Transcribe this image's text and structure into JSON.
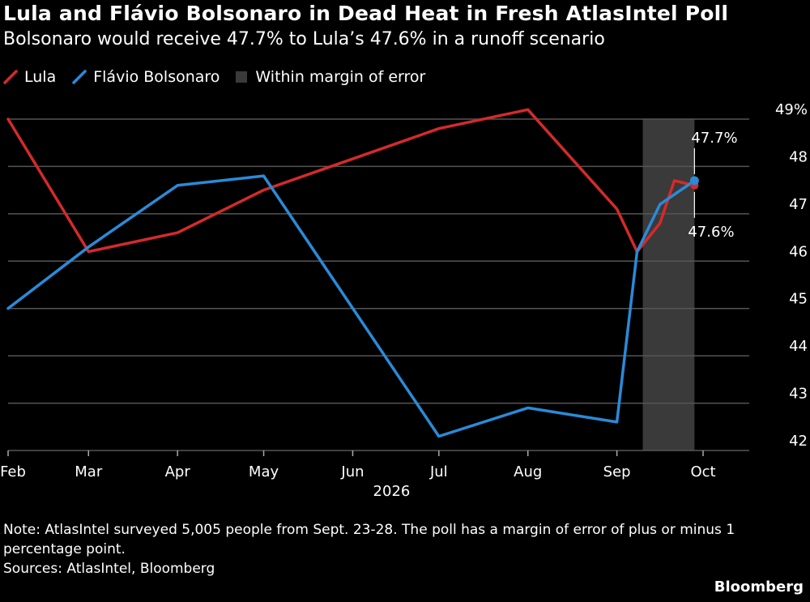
{
  "title": "Lula and Flávio Bolsonaro in Dead Heat in Fresh AtlasIntel Poll",
  "subtitle": "Bolsonaro would receive 47.7% to Lula’s 47.6% in a runoff scenario",
  "legend": {
    "lula": "Lula",
    "bolsonaro": "Flávio Bolsonaro",
    "margin": "Within margin of error"
  },
  "note": "Note: AtlasIntel surveyed 5,005 people from Sept. 23-28. The poll has a margin of error of plus or minus 1 percentage point.",
  "sources": "Sources: AtlasIntel, Bloomberg",
  "brand": "Bloomberg",
  "colors": {
    "lula": "#d42a2a",
    "bolsonaro": "#2a8ad8",
    "margin_band": "#3a3a3a",
    "grid": "#555555",
    "background": "#000000"
  },
  "chart_data": {
    "type": "line",
    "title": "Lula and Flávio Bolsonaro in Dead Heat in Fresh AtlasIntel Poll",
    "subtitle": "Bolsonaro would receive 47.7% to Lula’s 47.6% in a runoff scenario",
    "xlabel": "2026",
    "ylabel": "",
    "ylim": [
      42,
      49
    ],
    "xlim": [
      "2026-02-01",
      "2026-10-01"
    ],
    "y_ticks": [
      "42",
      "43",
      "44",
      "45",
      "46",
      "47",
      "48",
      "49%"
    ],
    "x_ticks": [
      "Feb",
      "Mar",
      "Apr",
      "May",
      "Jun",
      "Jul",
      "Aug",
      "Sep",
      "Oct"
    ],
    "year_label": "2026",
    "grid": "horizontal",
    "legend_position": "top-left",
    "margin_band": {
      "label": "Within margin of error",
      "x_start": "2026-09-10",
      "x_end": "2026-09-28"
    },
    "series": [
      {
        "name": "Lula",
        "color": "#d42a2a",
        "points": [
          [
            "2026-02-01",
            49.0
          ],
          [
            "2026-03-01",
            46.2
          ],
          [
            "2026-04-01",
            46.6
          ],
          [
            "2026-05-01",
            47.5
          ],
          [
            "2026-07-01",
            48.8
          ],
          [
            "2026-08-01",
            49.2
          ],
          [
            "2026-09-01",
            47.1
          ],
          [
            "2026-09-08",
            46.2
          ],
          [
            "2026-09-16",
            46.8
          ],
          [
            "2026-09-21",
            47.7
          ],
          [
            "2026-09-28",
            47.6
          ]
        ]
      },
      {
        "name": "Flávio Bolsonaro",
        "color": "#2a8ad8",
        "points": [
          [
            "2026-02-01",
            45.0
          ],
          [
            "2026-03-01",
            46.3
          ],
          [
            "2026-04-01",
            47.6
          ],
          [
            "2026-05-01",
            47.8
          ],
          [
            "2026-07-01",
            42.3
          ],
          [
            "2026-08-01",
            42.9
          ],
          [
            "2026-09-01",
            42.6
          ],
          [
            "2026-09-08",
            46.2
          ],
          [
            "2026-09-16",
            47.2
          ],
          [
            "2026-09-28",
            47.7
          ]
        ]
      }
    ],
    "annotations": [
      {
        "text": "47.7%",
        "series": "Flávio Bolsonaro",
        "x": "2026-09-28",
        "y": 47.7
      },
      {
        "text": "47.6%",
        "series": "Lula",
        "x": "2026-09-28",
        "y": 47.6
      }
    ]
  }
}
